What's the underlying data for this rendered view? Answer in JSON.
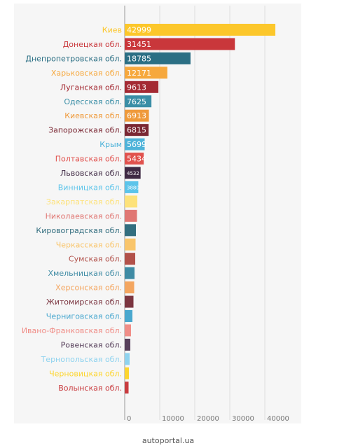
{
  "chart_data": {
    "type": "bar",
    "orientation": "horizontal",
    "categories": [
      "Киев",
      "Донецкая обл.",
      "Днепропетровская обл.",
      "Харьковская обл.",
      "Луганская обл.",
      "Одесская обл.",
      "Киевская обл.",
      "Запорожская обл.",
      "Крым",
      "Полтавская обл.",
      "Львовская обл.",
      "Винницкая обл.",
      "Закарпатская обл.",
      "Николаевская обл.",
      "Кировоградская обл.",
      "Черкасская обл.",
      "Сумская обл.",
      "Хмельницкая обл.",
      "Херсонская обл.",
      "Житомирская обл.",
      "Черниговская обл.",
      "Ивано-Франковская обл.",
      "Ровенская обл.",
      "Тернопольская обл.",
      "Черновицкая обл.",
      "Волынская обл."
    ],
    "values": [
      42999,
      31451,
      18785,
      12171,
      9613,
      7625,
      6913,
      6815,
      5699,
      5434,
      4532,
      3880,
      3600,
      3500,
      3200,
      3100,
      3000,
      2800,
      2700,
      2500,
      2200,
      1800,
      1600,
      1400,
      1200,
      1100
    ],
    "value_labels": [
      "42999",
      "31451",
      "18785",
      "12171",
      "9613",
      "7625",
      "6913",
      "6815",
      "5699",
      "5434",
      "4532",
      "3880",
      null,
      null,
      null,
      null,
      null,
      null,
      null,
      null,
      null,
      null,
      null,
      null,
      null,
      null
    ],
    "colors": [
      "#fcc72b",
      "#c9373b",
      "#2b6f84",
      "#f6a83d",
      "#a42a33",
      "#3a8ea6",
      "#ef9a3b",
      "#7a2733",
      "#4fb3d9",
      "#e1524e",
      "#3f2a44",
      "#5cc4ea",
      "#fde27a",
      "#e07773",
      "#336e7f",
      "#f9c56b",
      "#b2514a",
      "#3f8ba4",
      "#f4a660",
      "#7b3540",
      "#4aa8cf",
      "#f08e88",
      "#57405b",
      "#8fd3ef",
      "#fdd52e",
      "#c93c3f"
    ],
    "xlim": [
      0,
      50000
    ],
    "xticks": [
      0,
      10000,
      20000,
      30000,
      40000
    ],
    "grid": true
  },
  "footer": "autoportal.ua"
}
